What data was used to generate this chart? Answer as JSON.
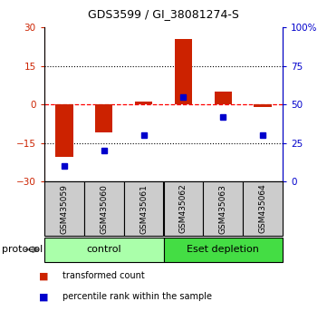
{
  "title": "GDS3599 / GI_38081274-S",
  "samples": [
    "GSM435059",
    "GSM435060",
    "GSM435061",
    "GSM435062",
    "GSM435063",
    "GSM435064"
  ],
  "transformed_counts": [
    -20.5,
    -11.0,
    1.0,
    25.5,
    5.0,
    -1.0
  ],
  "percentile_ranks": [
    10,
    20,
    30,
    55,
    42,
    30
  ],
  "bar_color": "#cc2200",
  "dot_color": "#0000cc",
  "ylim_left": [
    -30,
    30
  ],
  "ylim_right": [
    0,
    100
  ],
  "yticks_left": [
    -30,
    -15,
    0,
    15,
    30
  ],
  "yticks_right": [
    0,
    25,
    50,
    75,
    100
  ],
  "ytick_labels_right": [
    "0",
    "25",
    "50",
    "75",
    "100%"
  ],
  "dotted_lines": [
    -15,
    15
  ],
  "protocol_groups": [
    {
      "label": "control",
      "start": 0,
      "end": 2,
      "color": "#aaffaa"
    },
    {
      "label": "Eset depletion",
      "start": 3,
      "end": 5,
      "color": "#44dd44"
    }
  ],
  "protocol_label": "protocol",
  "legend_items": [
    {
      "label": "transformed count",
      "color": "#cc2200"
    },
    {
      "label": "percentile rank within the sample",
      "color": "#0000cc"
    }
  ],
  "background_color": "#ffffff",
  "bar_width": 0.45,
  "sample_box_color": "#cccccc",
  "arrow_color": "#777777"
}
